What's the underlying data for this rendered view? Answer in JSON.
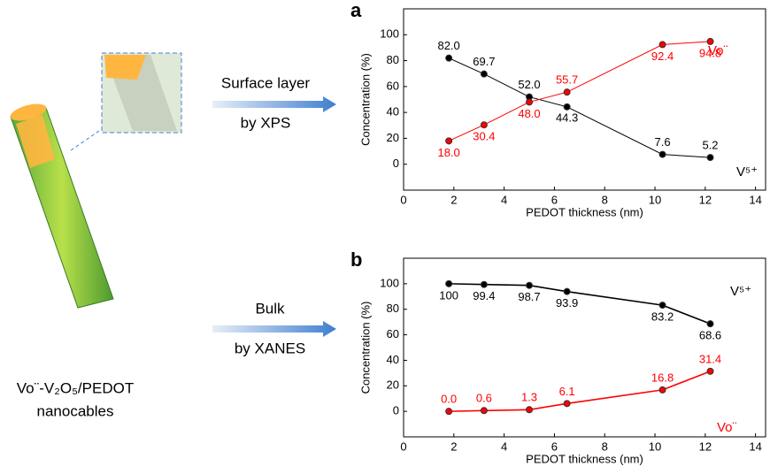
{
  "chart_data": [
    {
      "type": "line",
      "panel": "a",
      "xlabel": "PEDOT thickness (nm)",
      "ylabel": "Concentration (%)",
      "x": [
        1.8,
        3.2,
        5.0,
        6.5,
        10.3,
        12.2
      ],
      "series": [
        {
          "name": "V⁵⁺",
          "color": "#000000",
          "values": [
            82.0,
            69.7,
            52.0,
            44.3,
            7.6,
            5.2
          ],
          "value_labels": [
            "82.0",
            "69.7",
            "52.0",
            "44.3",
            "7.6",
            "5.2"
          ]
        },
        {
          "name": "Vo¨",
          "color": "#ff0000",
          "values": [
            18.0,
            30.4,
            48.0,
            55.7,
            92.4,
            94.8
          ],
          "value_labels": [
            "18.0",
            "30.4",
            "48.0",
            "55.7",
            "92.4",
            "94.8"
          ]
        }
      ],
      "xlim": [
        0,
        14.4
      ],
      "xticks": [
        0,
        2,
        4,
        6,
        8,
        10,
        12,
        14
      ],
      "ylim": [
        -20,
        120
      ],
      "yticks": [
        0,
        20,
        40,
        60,
        80,
        100
      ]
    },
    {
      "type": "line",
      "panel": "b",
      "xlabel": "PEDOT thickness (nm)",
      "ylabel": "Concentration (%)",
      "x": [
        1.8,
        3.2,
        5.0,
        6.5,
        10.3,
        12.2
      ],
      "series": [
        {
          "name": "V⁵⁺",
          "color": "#000000",
          "values": [
            100,
            99.4,
            98.7,
            93.9,
            83.2,
            68.6
          ],
          "value_labels": [
            "100",
            "99.4",
            "98.7",
            "93.9",
            "83.2",
            "68.6"
          ]
        },
        {
          "name": "Vo¨",
          "color": "#ff0000",
          "values": [
            0.0,
            0.6,
            1.3,
            6.1,
            16.8,
            31.4
          ],
          "value_labels": [
            "0.0",
            "0.6",
            "1.3",
            "6.1",
            "16.8",
            "31.4"
          ]
        }
      ],
      "xlim": [
        0,
        14.4
      ],
      "xticks": [
        0,
        2,
        4,
        6,
        8,
        10,
        12,
        14
      ],
      "ylim": [
        -20,
        120
      ],
      "yticks": [
        0,
        20,
        40,
        60,
        80,
        100
      ]
    }
  ],
  "diagram": {
    "arrow_a": [
      "Surface layer",
      "by XPS"
    ],
    "arrow_b": [
      "Bulk",
      "by XANES"
    ],
    "caption": [
      "Vo¨-V₂O₅/PEDOT",
      "nanocables"
    ]
  }
}
